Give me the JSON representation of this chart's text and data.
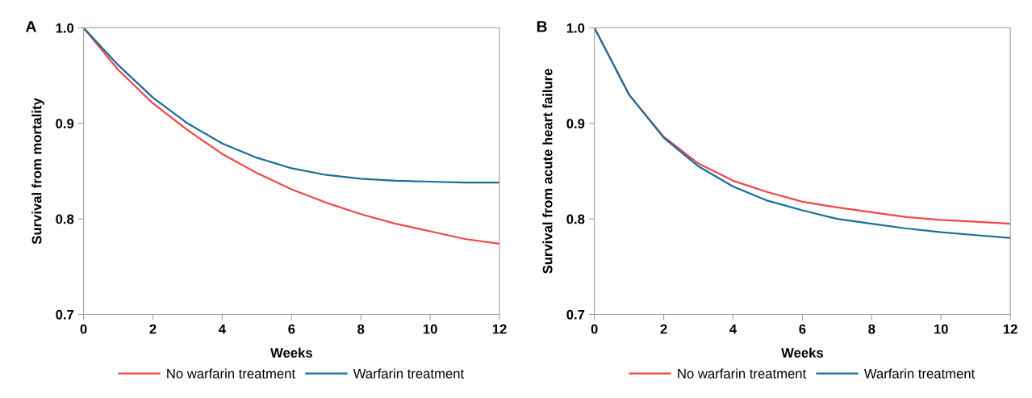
{
  "chart_data": [
    {
      "type": "line",
      "annotations": [
        "A"
      ],
      "xlabel": "Weeks",
      "ylabel": "Survival from mortality",
      "x": [
        0,
        1,
        2,
        3,
        4,
        5,
        6,
        7,
        8,
        9,
        10,
        11,
        12
      ],
      "series": [
        {
          "name": "No warfarin treatment",
          "color": "#f04646",
          "values": [
            1.0,
            0.956,
            0.921,
            0.893,
            0.868,
            0.848,
            0.831,
            0.817,
            0.805,
            0.795,
            0.787,
            0.779,
            0.774
          ]
        },
        {
          "name": "Warfarin treatment",
          "color": "#1a6e99",
          "values": [
            1.0,
            0.961,
            0.927,
            0.9,
            0.879,
            0.864,
            0.853,
            0.846,
            0.842,
            0.84,
            0.839,
            0.838,
            0.838
          ]
        }
      ],
      "xlim": [
        0,
        12
      ],
      "xticks": [
        0,
        2,
        4,
        6,
        8,
        10,
        12
      ],
      "ylim": [
        0.7,
        1.0
      ],
      "yticks": [
        0.7,
        0.8,
        0.9,
        {
          "value": 1.0,
          "label": "1.0"
        }
      ],
      "grid": false,
      "legend": "bottom",
      "marker": "none",
      "line_style": "solid"
    },
    {
      "type": "line",
      "annotations": [
        "B"
      ],
      "xlabel": "Weeks",
      "ylabel": "Survival from acute heart failure",
      "x": [
        0,
        1,
        2,
        3,
        4,
        5,
        6,
        7,
        8,
        9,
        10,
        11,
        12
      ],
      "series": [
        {
          "name": "No warfarin treatment",
          "color": "#f04646",
          "values": [
            1.0,
            0.93,
            0.886,
            0.858,
            0.84,
            0.828,
            0.818,
            0.812,
            0.807,
            0.802,
            0.799,
            0.797,
            0.795
          ]
        },
        {
          "name": "Warfarin treatment",
          "color": "#1a6e99",
          "values": [
            1.0,
            0.93,
            0.885,
            0.855,
            0.834,
            0.819,
            0.809,
            0.8,
            0.795,
            0.79,
            0.786,
            0.783,
            0.78
          ]
        }
      ],
      "xlim": [
        0,
        12
      ],
      "xticks": [
        0,
        2,
        4,
        6,
        8,
        10,
        12
      ],
      "ylim": [
        0.7,
        1.0
      ],
      "yticks": [
        0.7,
        0.8,
        0.9,
        {
          "value": 1.0,
          "label": "1.0"
        }
      ],
      "grid": false,
      "legend": "bottom",
      "marker": "none",
      "line_style": "solid"
    }
  ]
}
